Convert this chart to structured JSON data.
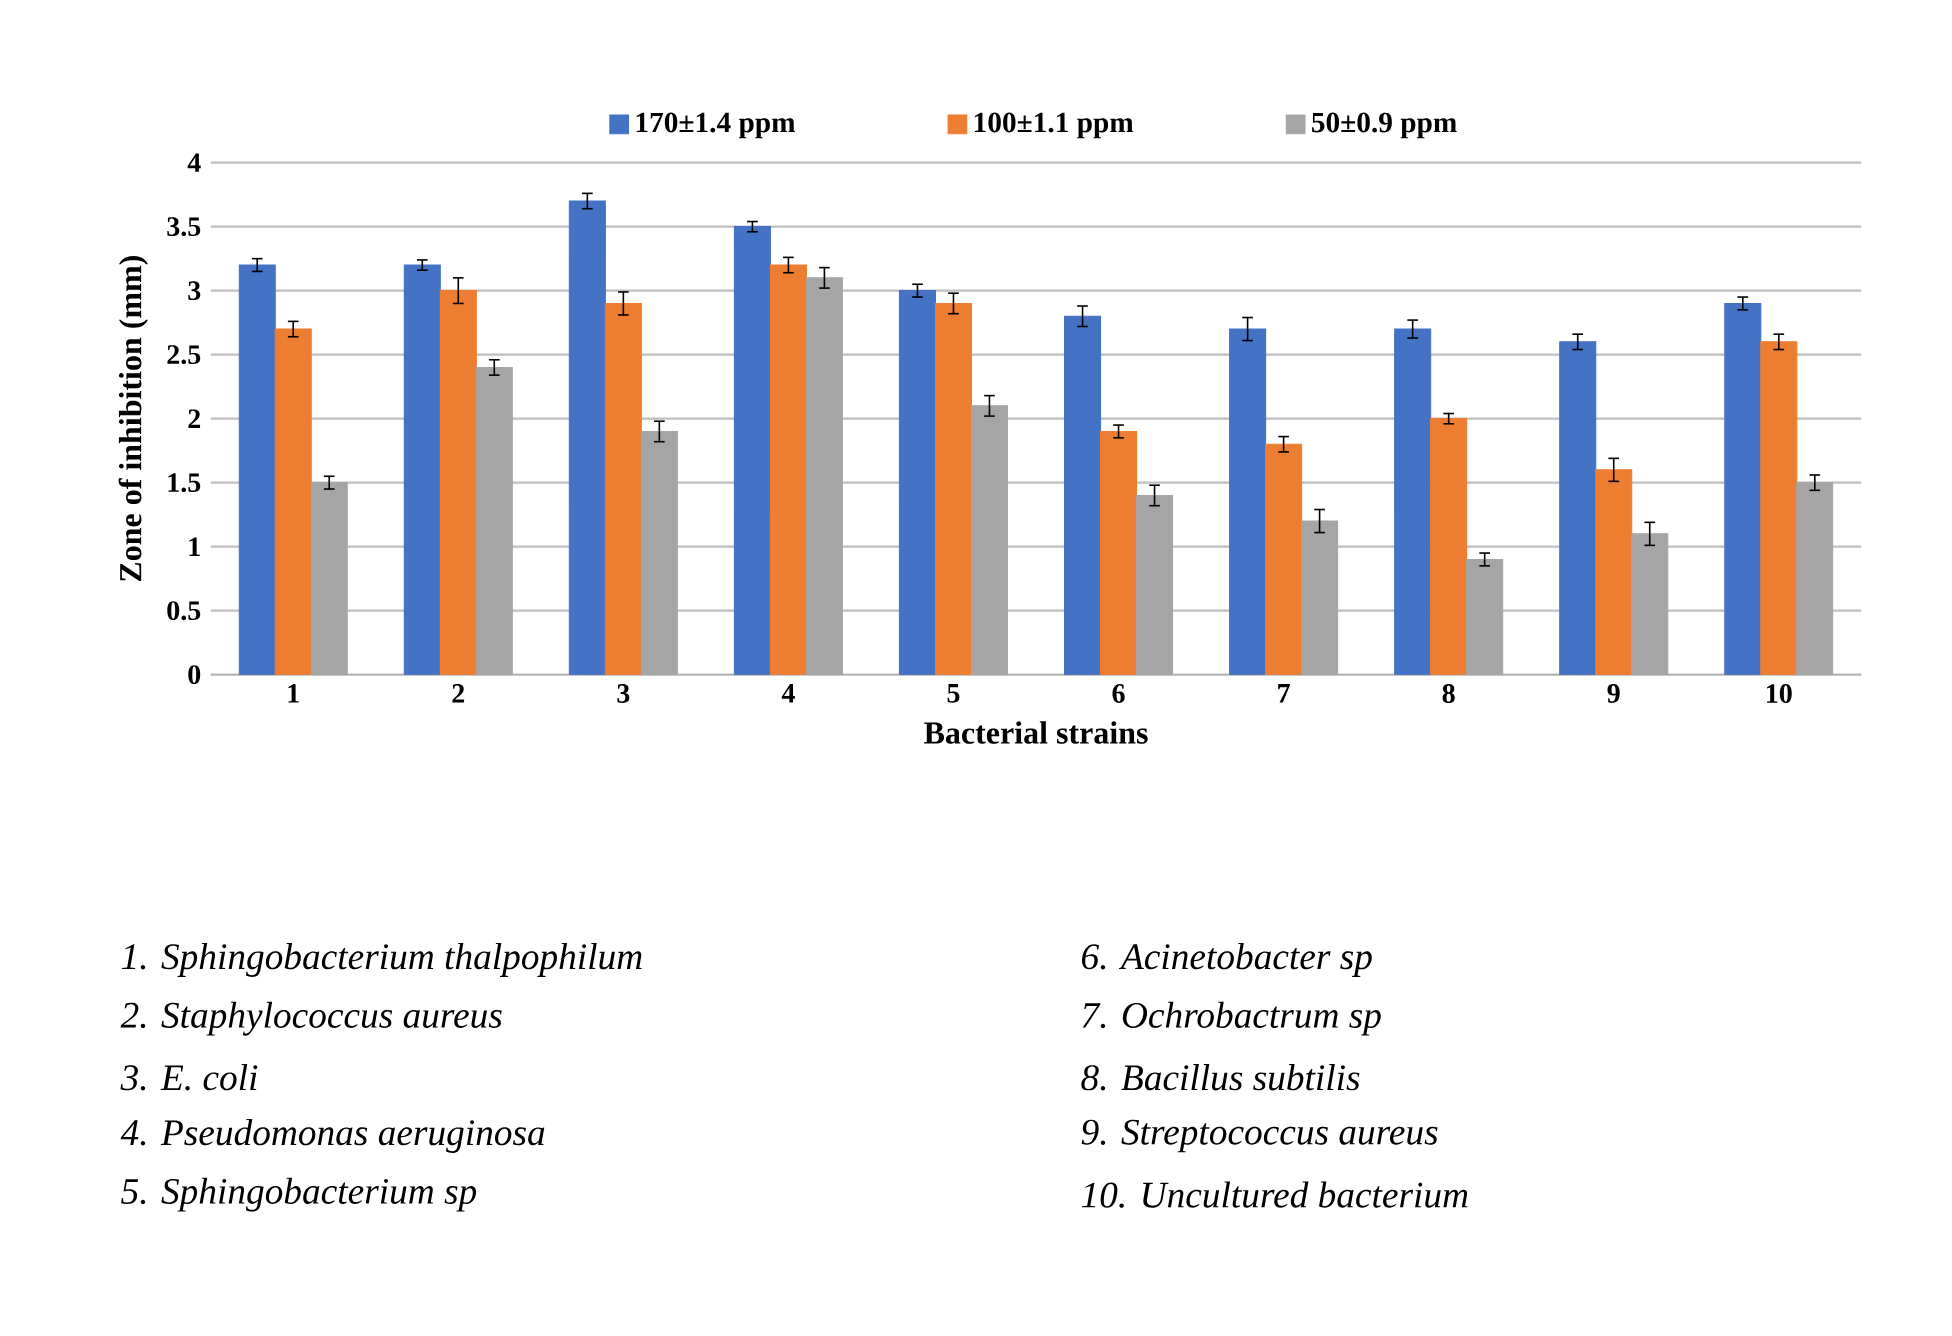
{
  "chart_data": {
    "type": "bar",
    "xlabel": "Bacterial strains",
    "ylabel": "Zone of inhibition (mm)",
    "categories": [
      "1",
      "2",
      "3",
      "4",
      "5",
      "6",
      "7",
      "8",
      "9",
      "10"
    ],
    "series": [
      {
        "name": "170±1.4 ppm",
        "color": "#4472c4",
        "values": [
          3.2,
          3.2,
          3.7,
          3.5,
          3.0,
          2.8,
          2.7,
          2.7,
          2.6,
          2.9
        ],
        "errors": [
          0.05,
          0.04,
          0.06,
          0.04,
          0.05,
          0.08,
          0.09,
          0.07,
          0.06,
          0.05
        ]
      },
      {
        "name": "100±1.1 ppm",
        "color": "#ed7d31",
        "values": [
          2.7,
          3.0,
          2.9,
          3.2,
          2.9,
          1.9,
          1.8,
          2.0,
          1.6,
          2.6
        ],
        "errors": [
          0.06,
          0.1,
          0.09,
          0.06,
          0.08,
          0.05,
          0.06,
          0.04,
          0.09,
          0.06
        ]
      },
      {
        "name": "50±0.9 ppm",
        "color": "#a5a5a5",
        "values": [
          1.5,
          2.4,
          1.9,
          3.1,
          2.1,
          1.4,
          1.2,
          0.9,
          1.1,
          1.5
        ],
        "errors": [
          0.05,
          0.06,
          0.08,
          0.08,
          0.08,
          0.08,
          0.09,
          0.05,
          0.09,
          0.06
        ]
      }
    ],
    "ylim": [
      0,
      4
    ],
    "yticks": [
      0,
      0.5,
      1,
      1.5,
      2,
      2.5,
      3,
      3.5,
      4
    ],
    "grid": "y",
    "legend": "top",
    "annotations": [
      "1.    Sphingobacterium thalpophilum",
      "2.     Staphylococcus aureus",
      "3.     E. coli",
      "4.     Pseudomonas aeruginosa",
      "5.    Sphingobacterium sp",
      "6. Acinetobacter sp",
      "7. Ochrobactrum sp",
      "8. Bacillus subtilis",
      "9. Streptococcus aureus",
      "10. Uncultured bacterium"
    ]
  }
}
